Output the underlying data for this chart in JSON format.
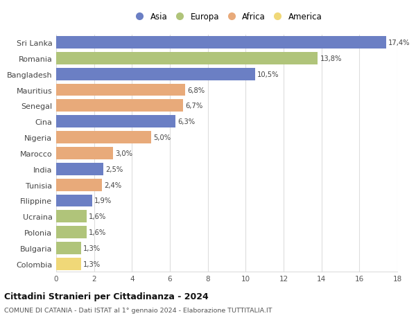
{
  "countries": [
    "Sri Lanka",
    "Romania",
    "Bangladesh",
    "Mauritius",
    "Senegal",
    "Cina",
    "Nigeria",
    "Marocco",
    "India",
    "Tunisia",
    "Filippine",
    "Ucraina",
    "Polonia",
    "Bulgaria",
    "Colombia"
  ],
  "values": [
    17.4,
    13.8,
    10.5,
    6.8,
    6.7,
    6.3,
    5.0,
    3.0,
    2.5,
    2.4,
    1.9,
    1.6,
    1.6,
    1.3,
    1.3
  ],
  "labels": [
    "17,4%",
    "13,8%",
    "10,5%",
    "6,8%",
    "6,7%",
    "6,3%",
    "5,0%",
    "3,0%",
    "2,5%",
    "2,4%",
    "1,9%",
    "1,6%",
    "1,6%",
    "1,3%",
    "1,3%"
  ],
  "continents": [
    "Asia",
    "Europa",
    "Asia",
    "Africa",
    "Africa",
    "Asia",
    "Africa",
    "Africa",
    "Asia",
    "Africa",
    "Asia",
    "Europa",
    "Europa",
    "Europa",
    "America"
  ],
  "colors": {
    "Asia": "#6b7fc4",
    "Europa": "#b0c47a",
    "Africa": "#e8aa7a",
    "America": "#f0d878"
  },
  "legend_order": [
    "Asia",
    "Europa",
    "Africa",
    "America"
  ],
  "title": "Cittadini Stranieri per Cittadinanza - 2024",
  "subtitle": "COMUNE DI CATANIA - Dati ISTAT al 1° gennaio 2024 - Elaborazione TUTTITALIA.IT",
  "xlim": [
    0,
    18
  ],
  "xticks": [
    0,
    2,
    4,
    6,
    8,
    10,
    12,
    14,
    16,
    18
  ],
  "bg_color": "#ffffff",
  "grid_color": "#dddddd",
  "bar_height": 0.78
}
